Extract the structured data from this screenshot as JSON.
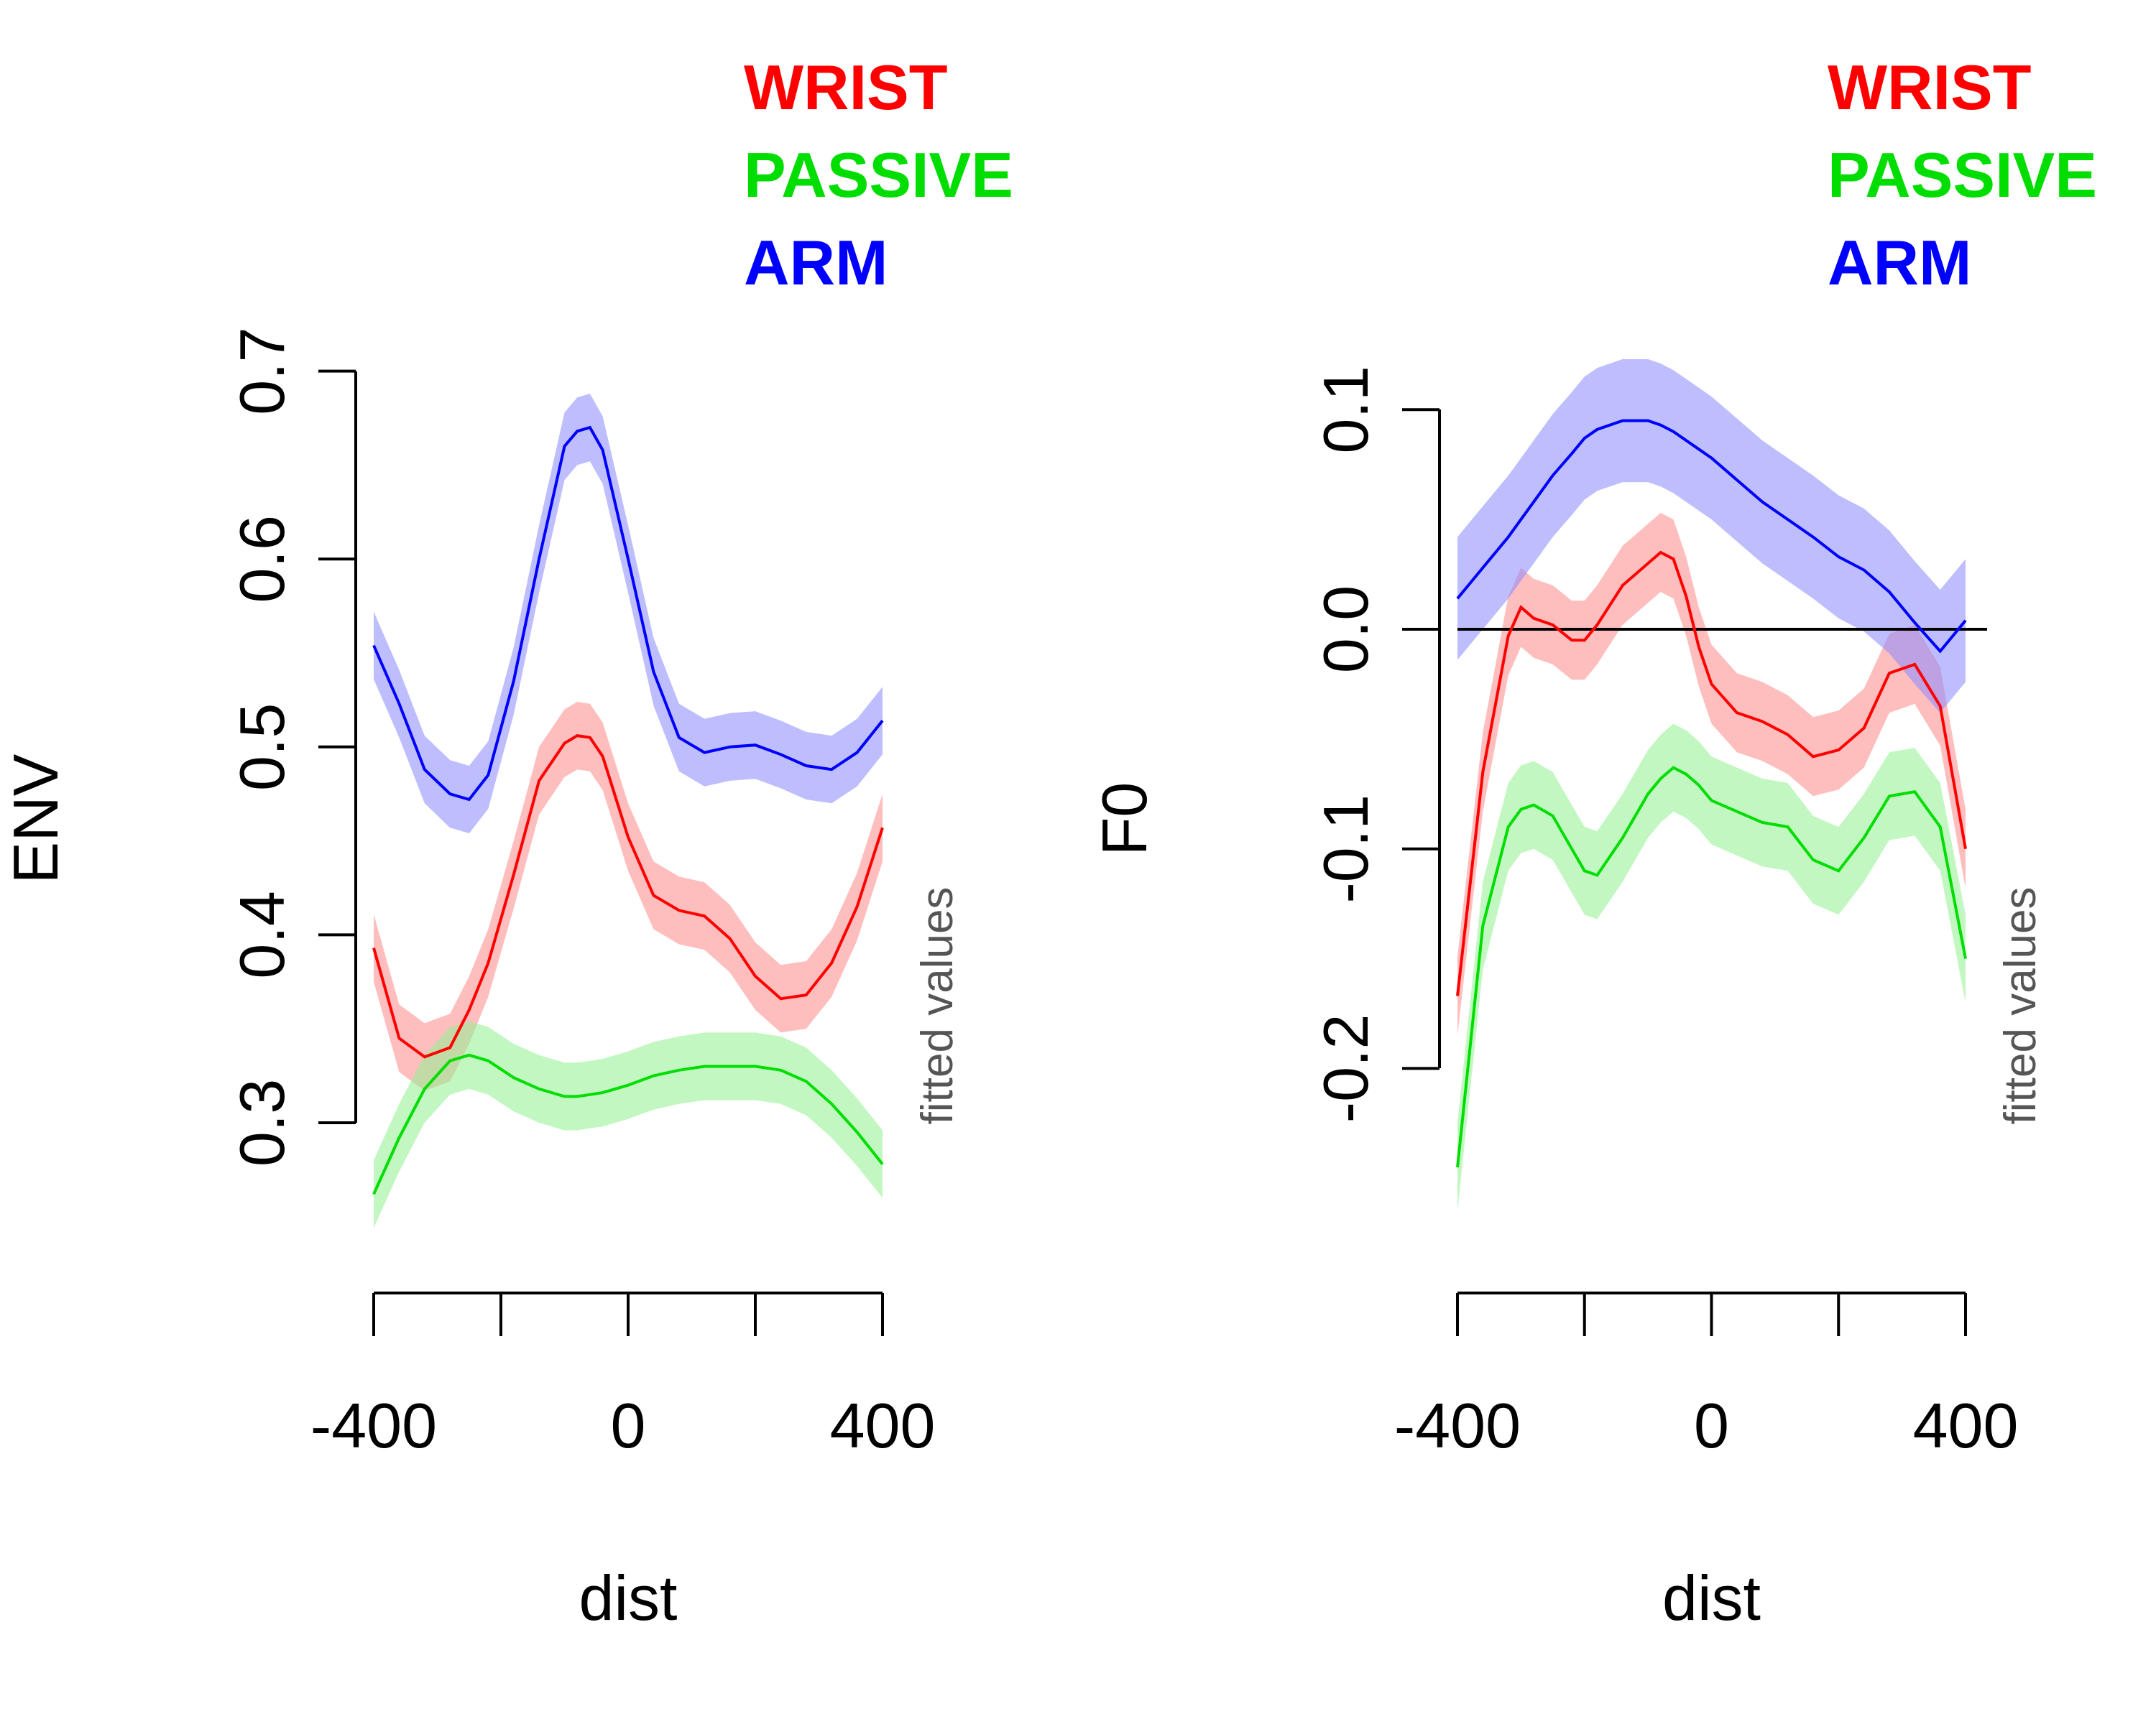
{
  "chart_data": [
    {
      "type": "line",
      "xlabel": "dist",
      "ylabel": "ENV",
      "side_note": "fitted values",
      "xlim": [
        -400,
        400
      ],
      "ylim": [
        0.3,
        0.7
      ],
      "xticks": [
        -400,
        -200,
        0,
        200,
        400
      ],
      "xtick_labels": [
        "-400",
        "0",
        "400"
      ],
      "yticks": [
        "0.3",
        "0.4",
        "0.5",
        "0.6",
        "0.7"
      ],
      "legend": [
        "WRIST",
        "PASSIVE",
        "ARM"
      ],
      "legend_position": "top-right",
      "x": [
        -400,
        -360,
        -320,
        -280,
        -250,
        -220,
        -180,
        -140,
        -100,
        -80,
        -60,
        -40,
        0,
        40,
        80,
        120,
        160,
        200,
        240,
        280,
        320,
        360,
        400
      ],
      "series": [
        {
          "name": "WRIST",
          "color": "#ff0000",
          "band_color": "#ff8888",
          "values": [
            0.393,
            0.345,
            0.335,
            0.34,
            0.36,
            0.385,
            0.432,
            0.482,
            0.502,
            0.506,
            0.505,
            0.495,
            0.452,
            0.421,
            0.413,
            0.41,
            0.398,
            0.378,
            0.366,
            0.368,
            0.385,
            0.415,
            0.457
          ],
          "half_width": 0.018
        },
        {
          "name": "PASSIVE",
          "color": "#00dd00",
          "band_color": "#90f090",
          "values": [
            0.262,
            0.292,
            0.318,
            0.333,
            0.336,
            0.333,
            0.324,
            0.318,
            0.314,
            0.314,
            0.315,
            0.316,
            0.32,
            0.325,
            0.328,
            0.33,
            0.33,
            0.33,
            0.328,
            0.322,
            0.31,
            0.295,
            0.278
          ],
          "half_width": 0.018
        },
        {
          "name": "ARM",
          "color": "#0000ff",
          "band_color": "#8888ff",
          "values": [
            0.554,
            0.523,
            0.488,
            0.475,
            0.472,
            0.485,
            0.535,
            0.6,
            0.66,
            0.668,
            0.67,
            0.658,
            0.6,
            0.54,
            0.505,
            0.497,
            0.5,
            0.501,
            0.496,
            0.49,
            0.488,
            0.497,
            0.514
          ],
          "half_width": 0.018
        }
      ]
    },
    {
      "type": "line",
      "xlabel": "dist",
      "ylabel": "F0",
      "side_note": "fitted values",
      "xlim": [
        -400,
        400
      ],
      "ylim": [
        -0.2,
        0.1
      ],
      "xticks": [
        -400,
        -200,
        0,
        200,
        400
      ],
      "xtick_labels": [
        "-400",
        "0",
        "400"
      ],
      "yticks": [
        "-0.2",
        "-0.1",
        "0.0",
        "0.1"
      ],
      "reference_line": 0.0,
      "legend": [
        "WRIST",
        "PASSIVE",
        "ARM"
      ],
      "legend_position": "top-right",
      "x": [
        -400,
        -360,
        -320,
        -300,
        -280,
        -250,
        -220,
        -200,
        -180,
        -140,
        -100,
        -80,
        -60,
        -40,
        -20,
        0,
        40,
        80,
        120,
        160,
        200,
        240,
        280,
        320,
        360,
        400
      ],
      "series": [
        {
          "name": "WRIST",
          "color": "#ff0000",
          "band_color": "#ff8888",
          "values": [
            -0.167,
            -0.065,
            -0.003,
            0.01,
            0.005,
            0.002,
            -0.005,
            -0.005,
            0.002,
            0.02,
            0.03,
            0.035,
            0.032,
            0.015,
            -0.008,
            -0.025,
            -0.038,
            -0.042,
            -0.048,
            -0.058,
            -0.055,
            -0.045,
            -0.02,
            -0.016,
            -0.035,
            -0.1
          ],
          "half_width": 0.018
        },
        {
          "name": "PASSIVE",
          "color": "#00dd00",
          "band_color": "#90f090",
          "values": [
            -0.245,
            -0.135,
            -0.09,
            -0.082,
            -0.08,
            -0.085,
            -0.1,
            -0.11,
            -0.112,
            -0.095,
            -0.075,
            -0.068,
            -0.063,
            -0.066,
            -0.071,
            -0.078,
            -0.083,
            -0.088,
            -0.09,
            -0.105,
            -0.11,
            -0.095,
            -0.076,
            -0.074,
            -0.09,
            -0.15
          ],
          "half_width": 0.02
        },
        {
          "name": "ARM",
          "color": "#0000ff",
          "band_color": "#8888ff",
          "values": [
            0.014,
            0.028,
            0.042,
            0.05,
            0.058,
            0.07,
            0.08,
            0.087,
            0.091,
            0.095,
            0.095,
            0.093,
            0.09,
            0.086,
            0.082,
            0.078,
            0.068,
            0.058,
            0.05,
            0.042,
            0.033,
            0.027,
            0.017,
            0.003,
            -0.01,
            0.004
          ],
          "half_width": 0.028
        }
      ]
    }
  ]
}
